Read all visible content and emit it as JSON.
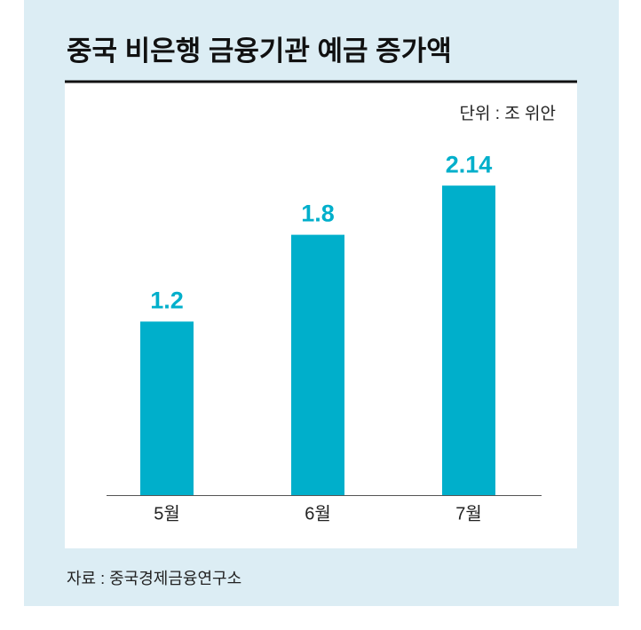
{
  "chart_data": {
    "type": "bar",
    "title": "중국 비은행 금융기관 예금 증가액",
    "unit_note": "단위 : 조 위안",
    "source": "자료 : 중국경제금융연구소",
    "categories": [
      "5월",
      "6월",
      "7월"
    ],
    "values": [
      1.2,
      1.8,
      2.14
    ],
    "color": "#00afcb"
  }
}
